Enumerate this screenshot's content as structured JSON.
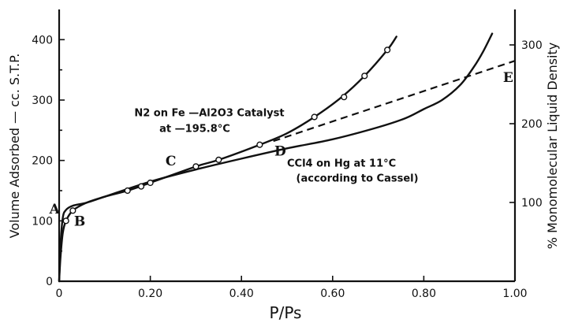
{
  "chart_data": {
    "type": "line",
    "title": "",
    "xlabel": "P/Ps",
    "ylabel": "Volume Adsorbed — cc. S.T.P.",
    "y2label": "% Monomolecular Liquid Density",
    "xlim": [
      0,
      1.0
    ],
    "ylim": [
      0,
      450
    ],
    "y2lim": [
      0,
      345
    ],
    "x_ticks": [
      0,
      0.2,
      0.4,
      0.6,
      0.8,
      1.0
    ],
    "x_tick_labels": [
      "0",
      "0.20",
      "0.40",
      "0.60",
      "0.80",
      "1.00"
    ],
    "y_ticks": [
      0,
      100,
      200,
      300,
      400
    ],
    "y_tick_labels": [
      "0",
      "100",
      "200",
      "300",
      "400"
    ],
    "y2_ticks": [
      100,
      200,
      300
    ],
    "y2_tick_labels": [
      "100",
      "200",
      "300"
    ],
    "grid": false,
    "legend": "none",
    "series": [
      {
        "style": "solid-markers",
        "x": [
          0,
          0.003,
          0.008,
          0.015,
          0.03,
          0.06,
          0.1,
          0.15,
          0.2,
          0.3,
          0.35,
          0.44,
          0.5,
          0.56,
          0.62,
          0.67,
          0.72,
          0.74
        ],
        "y": [
          0,
          40,
          80,
          100,
          117,
          130,
          140,
          150,
          163,
          190,
          201,
          226,
          245,
          272,
          305,
          340,
          383,
          405
        ],
        "marker_x": [
          0.015,
          0.03,
          0.15,
          0.18,
          0.2,
          0.3,
          0.35,
          0.44,
          0.56,
          0.625,
          0.67,
          0.72
        ],
        "marker_y": [
          100,
          117,
          150,
          157,
          163,
          190,
          201,
          226,
          272,
          305,
          340,
          383
        ]
      },
      {
        "style": "solid",
        "x": [
          0,
          0.003,
          0.008,
          0.015,
          0.03,
          0.06,
          0.1,
          0.2,
          0.3,
          0.4,
          0.5,
          0.6,
          0.7,
          0.76,
          0.8,
          0.84,
          0.88,
          0.91,
          0.93,
          0.95
        ],
        "y": [
          0,
          60,
          105,
          118,
          125,
          130,
          140,
          165,
          185,
          203,
          220,
          235,
          255,
          270,
          285,
          300,
          325,
          355,
          380,
          410
        ]
      },
      {
        "style": "dashed",
        "x": [
          0.47,
          1.0
        ],
        "y": [
          232,
          365
        ]
      }
    ],
    "annotations": [
      {
        "text": "N2 on Fe —Al2O3 Catalyst",
        "x": 0.165,
        "y": 273
      },
      {
        "text": "at —195.8°C",
        "x": 0.22,
        "y": 247
      },
      {
        "text": "CCl4 on Hg at 11°C",
        "x": 0.5,
        "y": 190
      },
      {
        "text": "(according to Cassel)",
        "x": 0.52,
        "y": 165
      }
    ],
    "point_labels": [
      {
        "text": "A",
        "x": -0.01,
        "y": 112
      },
      {
        "text": "B",
        "x": 0.045,
        "y": 92
      },
      {
        "text": "C",
        "x": 0.245,
        "y": 192
      },
      {
        "text": "D",
        "x": 0.485,
        "y": 208
      },
      {
        "text": "E",
        "x": 0.985,
        "y": 330
      }
    ]
  }
}
